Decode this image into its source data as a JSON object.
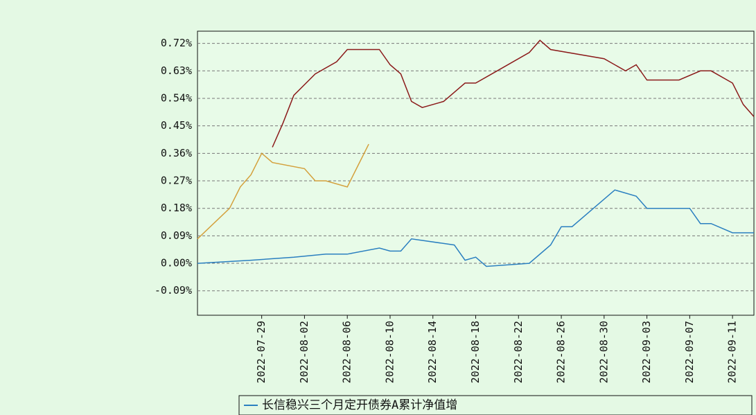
{
  "chart_data": {
    "type": "line",
    "xlim": [
      "2022-07-23",
      "2022-09-13"
    ],
    "xticks": [
      "2022-07-29",
      "2022-08-02",
      "2022-08-06",
      "2022-08-10",
      "2022-08-14",
      "2022-08-18",
      "2022-08-22",
      "2022-08-26",
      "2022-08-30",
      "2022-09-03",
      "2022-09-07",
      "2022-09-11"
    ],
    "ylim": [
      -0.17,
      0.76
    ],
    "yticks": [
      {
        "value": -0.09,
        "label": "-0.09%"
      },
      {
        "value": 0,
        "label": "0.00%"
      },
      {
        "value": 0.09,
        "label": "0.09%"
      },
      {
        "value": 0.18,
        "label": "0.18%"
      },
      {
        "value": 0.27,
        "label": "0.27%"
      },
      {
        "value": 0.36,
        "label": "0.36%"
      },
      {
        "value": 0.45,
        "label": "0.45%"
      },
      {
        "value": 0.54,
        "label": "0.54%"
      },
      {
        "value": 0.63,
        "label": "0.63%"
      },
      {
        "value": 0.72,
        "label": "0.72%"
      }
    ],
    "grid": true,
    "series": [
      {
        "name": "长信稳兴三个月定开债券A累计净值增",
        "color": "#2a7fc0",
        "x": [
          "2022-07-23",
          "2022-07-28",
          "2022-08-01",
          "2022-08-04",
          "2022-08-06",
          "2022-08-09",
          "2022-08-10",
          "2022-08-11",
          "2022-08-12",
          "2022-08-16",
          "2022-08-17",
          "2022-08-18",
          "2022-08-19",
          "2022-08-23",
          "2022-08-25",
          "2022-08-26",
          "2022-08-27",
          "2022-08-29",
          "2022-08-31",
          "2022-09-02",
          "2022-09-03",
          "2022-09-07",
          "2022-09-08",
          "2022-09-09",
          "2022-09-11",
          "2022-09-13"
        ],
        "values": [
          0.0,
          0.01,
          0.02,
          0.03,
          0.03,
          0.05,
          0.04,
          0.04,
          0.08,
          0.06,
          0.01,
          0.02,
          -0.01,
          0.0,
          0.06,
          0.12,
          0.12,
          0.18,
          0.24,
          0.22,
          0.18,
          0.18,
          0.13,
          0.13,
          0.1,
          0.1
        ]
      },
      {
        "color": "#8b1a1a",
        "x": [
          "2022-07-30",
          "2022-07-31",
          "2022-08-01",
          "2022-08-03",
          "2022-08-05",
          "2022-08-06",
          "2022-08-09",
          "2022-08-10",
          "2022-08-11",
          "2022-08-12",
          "2022-08-13",
          "2022-08-15",
          "2022-08-17",
          "2022-08-18",
          "2022-08-20",
          "2022-08-23",
          "2022-08-24",
          "2022-08-25",
          "2022-08-30",
          "2022-09-01",
          "2022-09-02",
          "2022-09-03",
          "2022-09-05",
          "2022-09-06",
          "2022-09-08",
          "2022-09-09",
          "2022-09-11",
          "2022-09-12",
          "2022-09-13"
        ],
        "values": [
          0.38,
          0.46,
          0.55,
          0.62,
          0.66,
          0.7,
          0.7,
          0.65,
          0.62,
          0.53,
          0.51,
          0.53,
          0.59,
          0.59,
          0.63,
          0.69,
          0.73,
          0.7,
          0.67,
          0.63,
          0.65,
          0.6,
          0.6,
          0.6,
          0.63,
          0.63,
          0.59,
          0.52,
          0.48
        ]
      },
      {
        "color": "#d4a03c",
        "x": [
          "2022-07-23",
          "2022-07-26",
          "2022-07-27",
          "2022-07-28",
          "2022-07-29",
          "2022-07-30",
          "2022-08-02",
          "2022-08-03",
          "2022-08-04",
          "2022-08-06",
          "2022-08-07",
          "2022-08-08"
        ],
        "values": [
          0.08,
          0.18,
          0.25,
          0.29,
          0.36,
          0.33,
          0.31,
          0.27,
          0.27,
          0.25,
          0.32,
          0.39
        ]
      }
    ]
  }
}
